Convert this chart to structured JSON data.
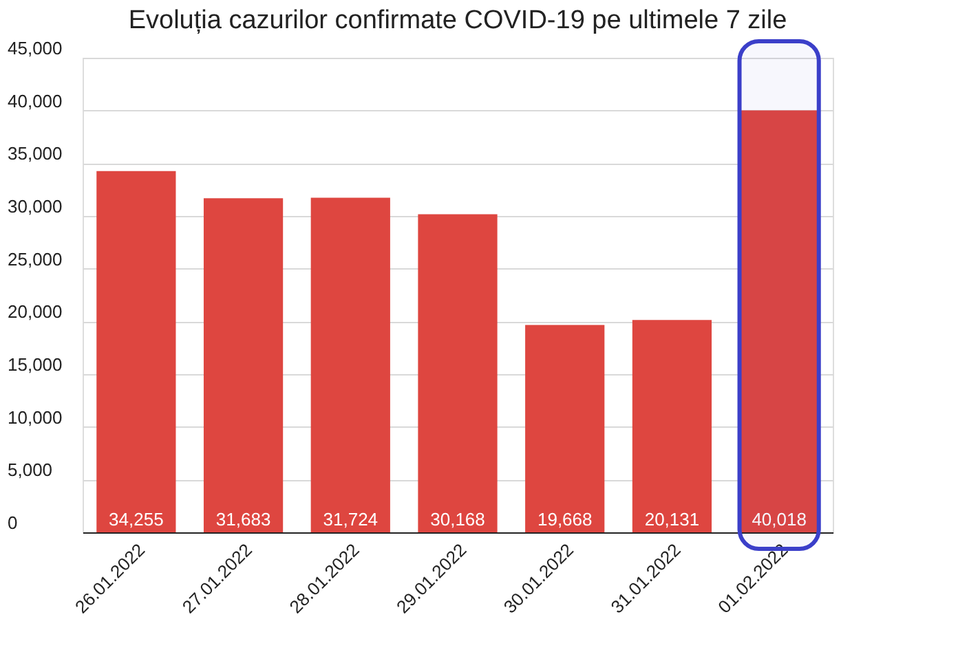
{
  "chart_data": {
    "type": "bar",
    "title": "Evoluția cazurilor confirmate COVID-19 pe ultimele 7 zile",
    "categories": [
      "26.01.2022",
      "27.01.2022",
      "28.01.2022",
      "29.01.2022",
      "30.01.2022",
      "31.01.2022",
      "01.02.2022"
    ],
    "values": [
      34255,
      31683,
      31724,
      30168,
      19668,
      20131,
      40018
    ],
    "value_labels": [
      "34,255",
      "31,683",
      "31,724",
      "30,168",
      "19,668",
      "20,131",
      "40,018"
    ],
    "color": "#de4640",
    "ylim": [
      0,
      45000
    ],
    "yticks": [
      0,
      {
        "value": 5000,
        "label": "5,000"
      },
      {
        "value": 10000,
        "label": "10,000"
      },
      {
        "value": 15000,
        "label": "15,000"
      },
      {
        "value": 20000,
        "label": "20,000"
      },
      {
        "value": 25000,
        "label": "25,000"
      },
      {
        "value": 30000,
        "label": "30,000"
      },
      {
        "value": 35000,
        "label": "35,000"
      },
      {
        "value": 40000,
        "label": "40,000"
      },
      {
        "value": 45000,
        "label": "45,000"
      }
    ],
    "grid": "y",
    "bands": [
      {
        "axis": "x",
        "from": "01.02.2022",
        "to": "01.02.2022",
        "color": "#3b3fc9"
      }
    ]
  }
}
